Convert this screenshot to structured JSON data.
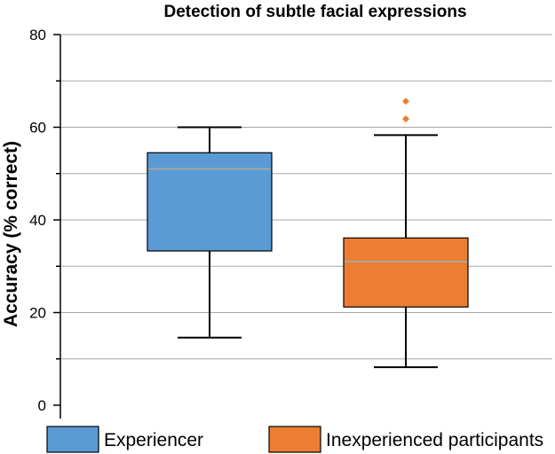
{
  "chart_data": {
    "type": "box",
    "title": "Detection of subtle facial expressions",
    "xlabel": "",
    "ylabel": "Accuracy (% correct)",
    "ylim": [
      0,
      80
    ],
    "yticks": [
      0,
      20,
      40,
      60,
      80
    ],
    "grid": true,
    "legend_placement": "bottom",
    "series": [
      {
        "name": "Experiencer",
        "color": "#5b9bd5",
        "whisker_low": 14.6,
        "q1": 33.3,
        "median": 51.0,
        "q3": 54.5,
        "whisker_high": 60.0,
        "outliers": []
      },
      {
        "name": "Inexperienced participants",
        "color": "#ed7d31",
        "whisker_low": 8.2,
        "q1": 21.2,
        "median": 31.0,
        "q3": 36.1,
        "whisker_high": 58.3,
        "outliers": [
          61.8,
          65.6
        ]
      }
    ],
    "median_color": "#a6a6a6",
    "grid_color": "#a6a6a6"
  }
}
